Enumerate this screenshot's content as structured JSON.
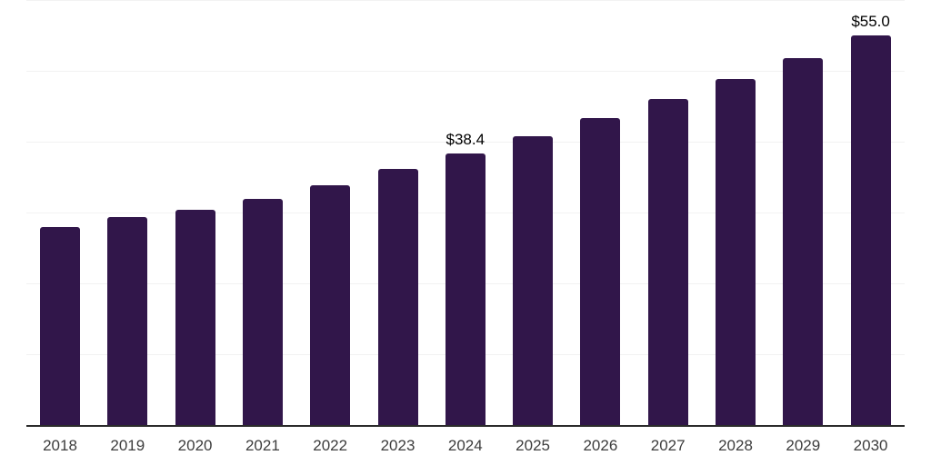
{
  "chart_data": {
    "type": "bar",
    "title": "",
    "xlabel": "",
    "ylabel": "",
    "categories": [
      "2018",
      "2019",
      "2020",
      "2021",
      "2022",
      "2023",
      "2024",
      "2025",
      "2026",
      "2027",
      "2028",
      "2029",
      "2030"
    ],
    "values": [
      27.9,
      29.4,
      30.4,
      31.9,
      33.9,
      36.1,
      38.4,
      40.8,
      43.3,
      46.0,
      48.8,
      51.8,
      55.0
    ],
    "data_labels": {
      "2024": "$38.4",
      "2030": "$55.0"
    },
    "ylim": [
      0,
      60
    ],
    "gridline_interval": 10,
    "grid": "horizontal",
    "legend": "none",
    "y_axis_tick_labels": "none",
    "style": {
      "bar_color": "#31164A",
      "gridline_color": "#f2f2f2",
      "axis_line_color": "#2b2b2b",
      "tick_label_color": "#3d3d3d",
      "value_label_color": "#000000",
      "background_color": "#ffffff"
    }
  }
}
